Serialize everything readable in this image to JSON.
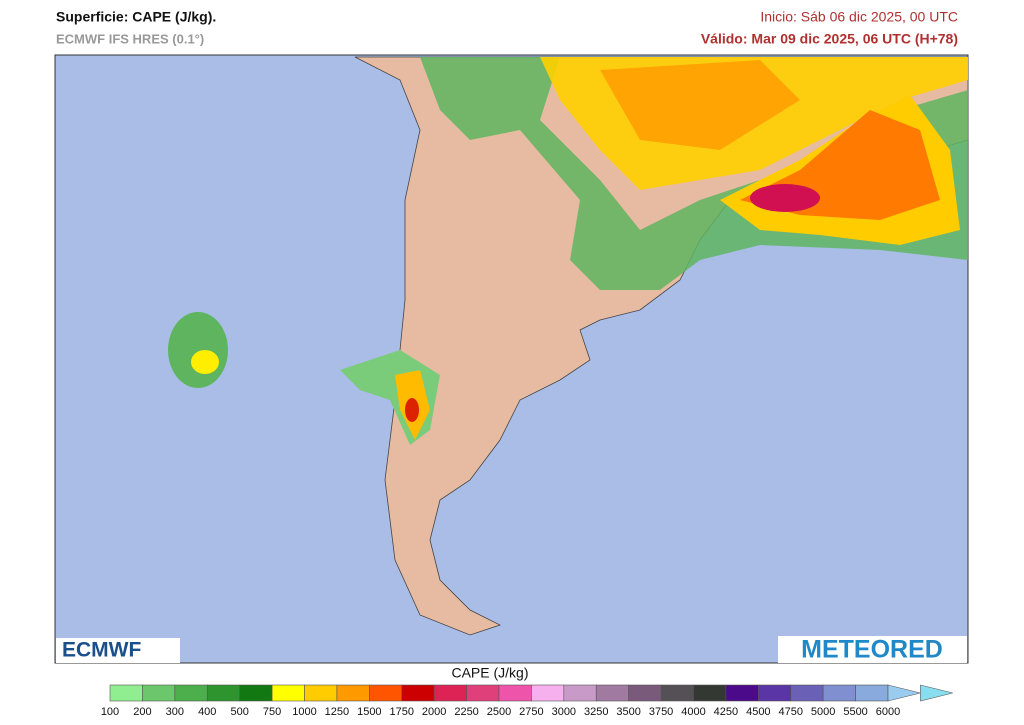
{
  "header": {
    "title": "Superficie: CAPE (J/kg).",
    "model": "ECMWF IFS HRES (0.1°)",
    "init": "Inicio: Sáb 06 dic 2025, 00 UTC",
    "valid": "Válido: Mar 09 dic 2025, 06 UTC (H+78)"
  },
  "logos": {
    "left": "ECMWF",
    "right": "METEORED"
  },
  "colorbar": {
    "title": "CAPE (J/kg)",
    "ticks": [
      100,
      200,
      300,
      400,
      500,
      750,
      1000,
      1250,
      1500,
      1750,
      2000,
      2250,
      2500,
      2750,
      3000,
      3250,
      3500,
      3750,
      4000,
      4250,
      4500,
      4750,
      5000,
      5500,
      6000
    ],
    "colors": [
      "#90ee90",
      "#6cc66c",
      "#4caf4c",
      "#2e942e",
      "#127812",
      "#ffff00",
      "#ffcc00",
      "#ff9900",
      "#ff5500",
      "#cc0000",
      "#dd2255",
      "#e0407a",
      "#ee55aa",
      "#f7b0ee",
      "#c89ac8",
      "#a07aa0",
      "#7a5a7a",
      "#555055",
      "#333833",
      "#4a0a8a",
      "#5a35a5",
      "#6a60b5",
      "#7f8fcf",
      "#88aadd",
      "#99ccee",
      "#88ddee"
    ]
  }
}
